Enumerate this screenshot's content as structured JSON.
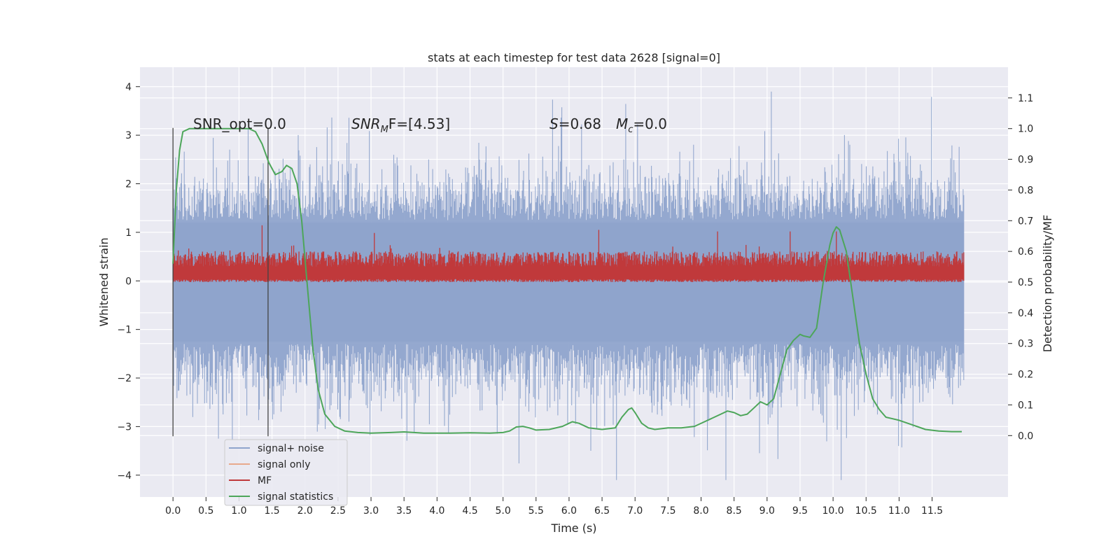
{
  "chart_data": {
    "type": "line",
    "title": "stats at each timestep for test data 2628 [signal=0]",
    "xlabel": "Time (s)",
    "ylabel": "Whitened strain",
    "ylabel_right": "Detection probability/MF",
    "xlim": [
      -0.5,
      12.65
    ],
    "ylim": [
      -4.45,
      4.4
    ],
    "ylim_right": [
      -0.2,
      1.2
    ],
    "x_ticks": [
      0.0,
      0.5,
      1.0,
      1.5,
      2.0,
      2.5,
      3.0,
      3.5,
      4.0,
      4.5,
      5.0,
      5.5,
      6.0,
      6.5,
      7.0,
      7.5,
      8.0,
      8.5,
      9.0,
      9.5,
      10.0,
      10.5,
      11.0,
      11.5
    ],
    "x_tick_labels": [
      "0.0",
      "0.5",
      "1.0",
      "1.5",
      "2.0",
      "2.5",
      "3.0",
      "3.5",
      "4.0",
      "4.5",
      "5.0",
      "5.5",
      "6.0",
      "6.5",
      "7.0",
      "7.5",
      "8.0",
      "8.5",
      "9.0",
      "9.5",
      "10.0",
      "10.5",
      "11.0",
      "11.5"
    ],
    "y_ticks": [
      -4,
      -3,
      -2,
      -1,
      0,
      1,
      2,
      3,
      4
    ],
    "y_tick_labels": [
      "−4",
      "−3",
      "−2",
      "−1",
      "0",
      "1",
      "2",
      "3",
      "4"
    ],
    "y_ticks_right": [
      0.0,
      0.1,
      0.2,
      0.3,
      0.4,
      0.5,
      0.6,
      0.7,
      0.8,
      0.9,
      1.0,
      1.1
    ],
    "y_tick_labels_right": [
      "0.0",
      "0.1",
      "0.2",
      "0.3",
      "0.4",
      "0.5",
      "0.6",
      "0.7",
      "0.8",
      "0.9",
      "1.0",
      "1.1"
    ],
    "grid": true,
    "legend_position": "lower-left",
    "legend": [
      {
        "label": "signal+ noise",
        "color": "#8fa4cc"
      },
      {
        "label": "signal only",
        "color": "#e8a98c"
      },
      {
        "label": "MF",
        "color": "#c0393b"
      },
      {
        "label": "signal statistics",
        "color": "#4da65a"
      }
    ],
    "annotations": {
      "snr_opt": "SNR_opt=0.0",
      "snr_mf_main": "SNR",
      "snr_mf_sub": "M",
      "snr_mf_tail": "F=[4.53]",
      "s_var": "S",
      "s_val": "=0.68",
      "mc_var": "M",
      "mc_sub": "c",
      "mc_val": "=0.0"
    },
    "vertical_markers": [
      0.0,
      1.44
    ],
    "series": [
      {
        "name": "signal+ noise",
        "color": "#8fa4cc",
        "style": "dense noise trace",
        "x_range": [
          0.0,
          11.98
        ],
        "typical_band": [
          -2.0,
          1.9
        ],
        "extremes": [
          -4.1,
          4.05
        ]
      },
      {
        "name": "MF",
        "color": "#c0393b",
        "axis": "right",
        "style": "dense trace",
        "x_range": [
          0.0,
          11.98
        ],
        "band": [
          0.5,
          0.6
        ],
        "peaks": [
          [
            1.35,
            0.685
          ],
          [
            3.05,
            0.66
          ],
          [
            6.45,
            0.67
          ],
          [
            10.05,
            0.665
          ],
          [
            8.25,
            0.665
          ],
          [
            9.35,
            0.665
          ]
        ]
      },
      {
        "name": "signal statistics",
        "color": "#4da65a",
        "axis": "right",
        "x": [
          0.0,
          0.05,
          0.1,
          0.15,
          0.25,
          0.4,
          0.6,
          0.8,
          1.0,
          1.15,
          1.25,
          1.35,
          1.45,
          1.55,
          1.65,
          1.72,
          1.8,
          1.88,
          1.95,
          2.05,
          2.12,
          2.2,
          2.3,
          2.45,
          2.6,
          2.8,
          3.0,
          3.3,
          3.5,
          3.8,
          4.2,
          4.5,
          4.8,
          5.0,
          5.1,
          5.2,
          5.3,
          5.4,
          5.5,
          5.7,
          5.9,
          6.0,
          6.05,
          6.15,
          6.3,
          6.5,
          6.7,
          6.8,
          6.9,
          6.95,
          7.0,
          7.1,
          7.2,
          7.3,
          7.5,
          7.7,
          7.9,
          8.1,
          8.3,
          8.4,
          8.5,
          8.6,
          8.7,
          8.8,
          8.9,
          9.0,
          9.1,
          9.2,
          9.3,
          9.4,
          9.5,
          9.55,
          9.65,
          9.75,
          9.85,
          9.95,
          10.0,
          10.05,
          10.1,
          10.2,
          10.3,
          10.4,
          10.5,
          10.6,
          10.7,
          10.8,
          11.0,
          11.2,
          11.4,
          11.6,
          11.8,
          11.95
        ],
        "values": [
          0.56,
          0.8,
          0.93,
          0.99,
          1.0,
          1.0,
          1.0,
          1.0,
          1.0,
          1.0,
          0.99,
          0.95,
          0.89,
          0.85,
          0.86,
          0.88,
          0.87,
          0.82,
          0.7,
          0.45,
          0.28,
          0.15,
          0.07,
          0.03,
          0.015,
          0.01,
          0.008,
          0.01,
          0.012,
          0.008,
          0.008,
          0.009,
          0.008,
          0.01,
          0.015,
          0.028,
          0.03,
          0.025,
          0.018,
          0.02,
          0.03,
          0.04,
          0.045,
          0.04,
          0.025,
          0.02,
          0.025,
          0.06,
          0.085,
          0.09,
          0.075,
          0.04,
          0.025,
          0.02,
          0.025,
          0.025,
          0.03,
          0.05,
          0.07,
          0.08,
          0.075,
          0.065,
          0.07,
          0.09,
          0.11,
          0.1,
          0.12,
          0.2,
          0.28,
          0.31,
          0.33,
          0.325,
          0.32,
          0.35,
          0.5,
          0.62,
          0.66,
          0.68,
          0.67,
          0.6,
          0.45,
          0.3,
          0.2,
          0.12,
          0.085,
          0.06,
          0.05,
          0.035,
          0.02,
          0.015,
          0.013,
          0.013
        ]
      }
    ]
  }
}
